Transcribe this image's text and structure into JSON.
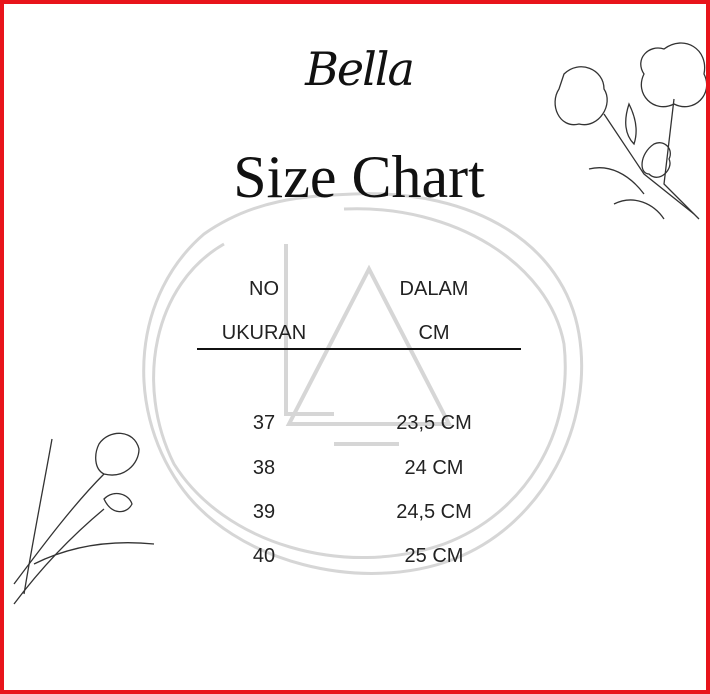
{
  "brand": "Bella",
  "title": "Size Chart",
  "colors": {
    "border": "#e8141b",
    "watermark": "#d4d4d4",
    "text": "#222222"
  },
  "watermark": "LA",
  "table": {
    "headers": [
      [
        "NO",
        "UKURAN"
      ],
      [
        "DALAM",
        "CM"
      ]
    ],
    "rows": [
      [
        "37",
        "23,5 CM"
      ],
      [
        "38",
        "24 CM"
      ],
      [
        "39",
        "24,5 CM"
      ],
      [
        "40",
        "25 CM"
      ]
    ]
  }
}
